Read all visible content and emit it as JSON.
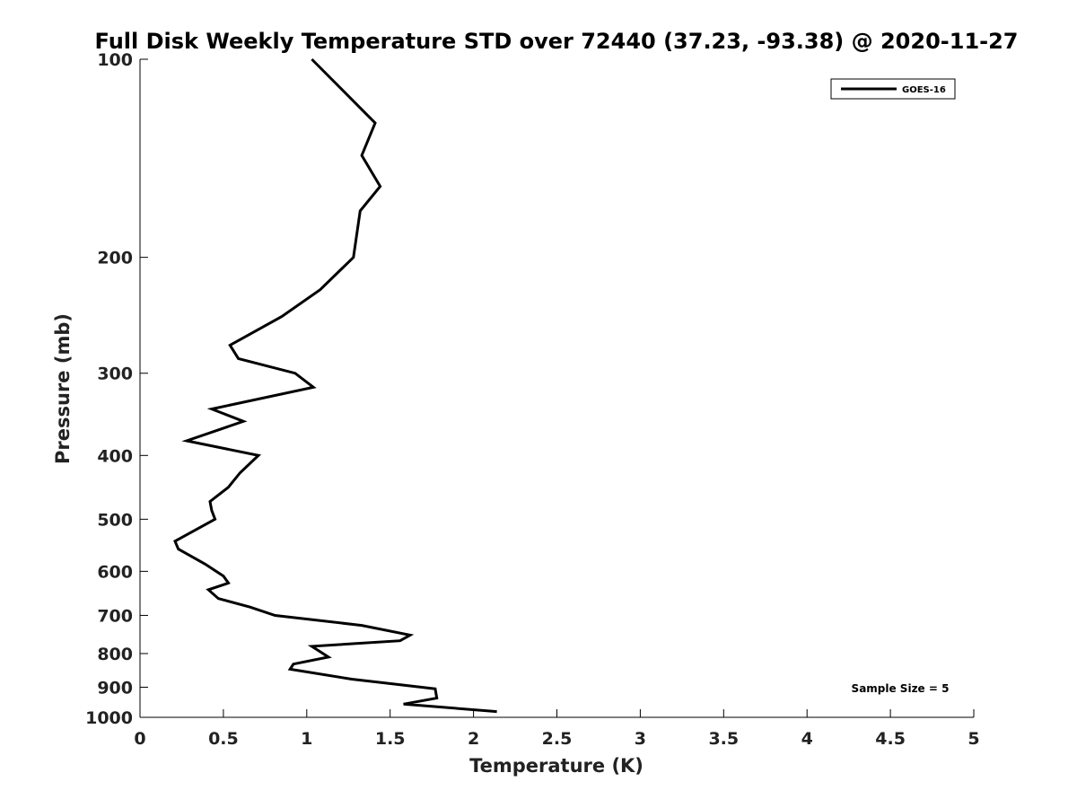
{
  "chart_data": {
    "type": "line",
    "title": "Full Disk Weekly Temperature STD over 72440 (37.23, -93.38) @ 2020-11-27",
    "xlabel": "Temperature (K)",
    "ylabel": "Pressure (mb)",
    "xlim": [
      0,
      5
    ],
    "ylim": [
      100,
      1000
    ],
    "y_scale": "log",
    "y_reversed": true,
    "x_ticks": [
      "0",
      "0.5",
      "1",
      "1.5",
      "2",
      "2.5",
      "3",
      "3.5",
      "4",
      "4.5",
      "5"
    ],
    "y_ticks": [
      "100",
      "200",
      "300",
      "400",
      "500",
      "600",
      "700",
      "800",
      "900",
      "1000"
    ],
    "grid": false,
    "legend_position": "top-right",
    "annotation": "Sample Size = 5",
    "series": [
      {
        "name": "GOES-16",
        "color": "#000000",
        "x": [
          1.03,
          1.41,
          1.33,
          1.44,
          1.32,
          1.28,
          1.08,
          0.85,
          0.54,
          0.59,
          0.93,
          1.04,
          0.43,
          0.62,
          0.28,
          0.71,
          0.6,
          0.53,
          0.42,
          0.43,
          0.45,
          0.21,
          0.23,
          0.39,
          0.5,
          0.53,
          0.41,
          0.47,
          0.66,
          0.81,
          1.33,
          1.62,
          1.56,
          1.03,
          1.13,
          0.92,
          0.9,
          1.27,
          1.77,
          1.78,
          1.58,
          2.14
        ],
        "y": [
          100,
          125,
          140,
          156,
          170,
          200,
          224,
          246,
          272,
          285,
          300,
          315,
          340,
          355,
          380,
          400,
          425,
          447,
          470,
          485,
          500,
          540,
          555,
          585,
          610,
          625,
          640,
          660,
          680,
          700,
          725,
          750,
          765,
          780,
          810,
          830,
          845,
          875,
          905,
          935,
          955,
          980
        ]
      }
    ]
  }
}
